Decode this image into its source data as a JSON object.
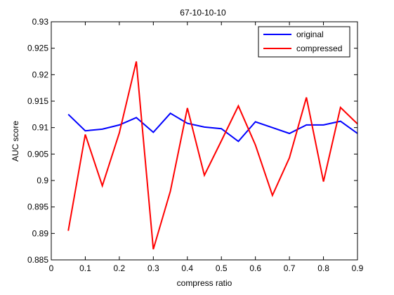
{
  "chart_data": {
    "type": "line",
    "title": "67-10-10-10",
    "xlabel": "compress ratio",
    "ylabel": "AUC score",
    "xlim": [
      0,
      0.9
    ],
    "ylim": [
      0.885,
      0.93
    ],
    "x_ticks": [
      0,
      0.1,
      0.2,
      0.3,
      0.4,
      0.5,
      0.6,
      0.7,
      0.8,
      0.9
    ],
    "x_tick_labels": [
      "0",
      "0.1",
      "0.2",
      "0.3",
      "0.4",
      "0.5",
      "0.6",
      "0.7",
      "0.8",
      "0.9"
    ],
    "y_ticks": [
      0.885,
      0.89,
      0.895,
      0.9,
      0.905,
      0.91,
      0.915,
      0.92,
      0.925,
      0.93
    ],
    "y_tick_labels": [
      "0.885",
      "0.89",
      "0.895",
      "0.9",
      "0.905",
      "0.91",
      "0.915",
      "0.92",
      "0.925",
      "0.93"
    ],
    "grid": false,
    "legend_position": "top-right",
    "x": [
      0.05,
      0.1,
      0.15,
      0.2,
      0.25,
      0.3,
      0.35,
      0.4,
      0.45,
      0.5,
      0.55,
      0.6,
      0.65,
      0.7,
      0.75,
      0.8,
      0.85,
      0.9
    ],
    "series": [
      {
        "name": "original",
        "color": "#0000ff",
        "values": [
          0.9125,
          0.9094,
          0.9097,
          0.9105,
          0.9119,
          0.9091,
          0.9127,
          0.9108,
          0.9101,
          0.9098,
          0.9074,
          0.9111,
          0.91,
          0.9089,
          0.9105,
          0.9105,
          0.9112,
          0.9089
        ]
      },
      {
        "name": "compressed",
        "color": "#ff0000",
        "values": [
          0.8905,
          0.9087,
          0.899,
          0.909,
          0.9225,
          0.887,
          0.898,
          0.9137,
          0.901,
          0.9075,
          0.9141,
          0.9067,
          0.8972,
          0.9043,
          0.9157,
          0.8998,
          0.9138,
          0.9107
        ]
      }
    ]
  }
}
